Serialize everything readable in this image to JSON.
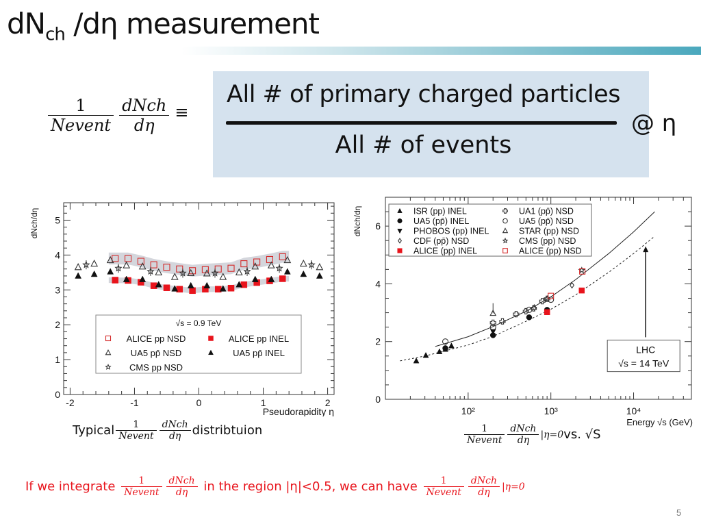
{
  "slide": {
    "title_main": "dN",
    "title_sub": "ch",
    "title_rest": " /dη measurement",
    "page_number": "5",
    "colors": {
      "accent_red": "#e8141c",
      "def_box": "#d5e2ee",
      "title_bar": "#4aa8bd"
    }
  },
  "formula": {
    "one": "1",
    "n_event": "Nevent",
    "dnch": "dNch",
    "deta": "dη",
    "equiv": "≡",
    "numerator": "All # of primary charged particles",
    "denominator": "All # of events",
    "at_eta": "@ η"
  },
  "captions": {
    "left_prefix": "Typical",
    "left_suffix": "distribtuion",
    "right_sub": "|η=0",
    "right_vs": " vs. √S"
  },
  "note": {
    "part1": "If we integrate ",
    "part2": " in the region |η|<0.5, we can have ",
    "part3": "|η=0"
  },
  "chart_data": [
    {
      "type": "scatter",
      "title": "",
      "xlabel": "Pseudorapidity η",
      "ylabel": "dNch/dη",
      "xlim": [
        -2.1,
        2.1
      ],
      "ylim": [
        0,
        5.5
      ],
      "xticks": [
        "-2",
        "-1",
        "0",
        "1",
        "2"
      ],
      "yticks": [
        "0",
        "1",
        "2",
        "3",
        "4",
        "5"
      ],
      "legend_title": "√s = 0.9 TeV",
      "legend_position": "bottom-center",
      "series": [
        {
          "name": "ALICE pp NSD",
          "marker": "open-square",
          "color": "#d42a2a",
          "x": [
            -1.3,
            -1.1,
            -0.9,
            -0.7,
            -0.5,
            -0.3,
            -0.1,
            0.1,
            0.3,
            0.5,
            0.7,
            0.9,
            1.1,
            1.3
          ],
          "y": [
            3.9,
            3.9,
            3.82,
            3.72,
            3.65,
            3.6,
            3.55,
            3.58,
            3.6,
            3.62,
            3.75,
            3.8,
            3.87,
            3.95
          ]
        },
        {
          "name": "ALICE pp INEL",
          "marker": "filled-square",
          "color": "#e8141c",
          "x": [
            -1.3,
            -1.1,
            -0.9,
            -0.7,
            -0.5,
            -0.3,
            -0.1,
            0.1,
            0.3,
            0.5,
            0.7,
            0.9,
            1.1,
            1.3
          ],
          "y": [
            3.28,
            3.27,
            3.22,
            3.12,
            3.06,
            3.02,
            2.98,
            3.02,
            3.02,
            3.05,
            3.15,
            3.21,
            3.26,
            3.32
          ]
        },
        {
          "name": "UA5 pp̄ NSD",
          "marker": "open-triangle",
          "color": "#333333",
          "x": [
            -1.875,
            -1.625,
            -1.375,
            -1.125,
            -0.875,
            -0.625,
            -0.375,
            -0.125,
            0.125,
            0.375,
            0.625,
            0.875,
            1.125,
            1.375,
            1.625,
            1.875
          ],
          "y": [
            3.65,
            3.75,
            3.85,
            3.7,
            3.67,
            3.5,
            3.37,
            3.48,
            3.47,
            3.37,
            3.5,
            3.67,
            3.7,
            3.85,
            3.75,
            3.65
          ]
        },
        {
          "name": "UA5 pp̄ INEL",
          "marker": "filled-triangle",
          "color": "#111111",
          "x": [
            -1.875,
            -1.625,
            -1.375,
            -1.125,
            -0.875,
            -0.625,
            -0.375,
            -0.125,
            0.125,
            0.375,
            0.625,
            0.875,
            1.125,
            1.375,
            1.625,
            1.875
          ],
          "y": [
            3.4,
            3.45,
            3.52,
            3.3,
            3.3,
            3.15,
            3.03,
            3.12,
            3.12,
            3.03,
            3.15,
            3.3,
            3.3,
            3.52,
            3.45,
            3.4
          ]
        },
        {
          "name": "CMS pp NSD",
          "marker": "open-star",
          "color": "#333333",
          "x": [
            -1.75,
            -1.25,
            -0.75,
            -0.25,
            0.25,
            0.75,
            1.25,
            1.75
          ],
          "y": [
            3.72,
            3.62,
            3.53,
            3.48,
            3.48,
            3.53,
            3.62,
            3.72
          ]
        }
      ]
    },
    {
      "type": "scatter",
      "title": "",
      "xlabel": "Energy √s (GeV)",
      "ylabel": "dNch/dη",
      "xscale": "log",
      "xlim": [
        10,
        50000
      ],
      "ylim": [
        0,
        7
      ],
      "xticks": [
        "10²",
        "10³",
        "10⁴"
      ],
      "yticks": [
        "0",
        "2",
        "4",
        "6"
      ],
      "legend_position": "top-left",
      "annotation": {
        "line1": "LHC",
        "line2": "√s = 14 TeV",
        "x": 14000
      },
      "fits": [
        {
          "name": "NSD fit",
          "style": "solid",
          "x": [
            40,
            100,
            200,
            500,
            1000,
            2000,
            5000,
            10000,
            18000
          ],
          "y": [
            1.83,
            2.17,
            2.52,
            3.05,
            3.55,
            4.15,
            5.05,
            5.8,
            6.5
          ]
        },
        {
          "name": "INEL fit",
          "style": "dashed",
          "x": [
            15,
            30,
            60,
            100,
            200,
            500,
            1000,
            2000,
            5000,
            10000,
            18000
          ],
          "y": [
            1.33,
            1.5,
            1.72,
            1.88,
            2.18,
            2.7,
            3.12,
            3.62,
            4.4,
            5.05,
            5.65
          ]
        }
      ],
      "series": [
        {
          "name": "ISR (pp) INEL",
          "marker": "filled-triangle",
          "color": "#111111",
          "x": [
            23.6,
            30.8,
            45,
            53,
            62.8
          ],
          "y": [
            1.33,
            1.52,
            1.65,
            1.73,
            1.85
          ]
        },
        {
          "name": "UA5 (pp̄) INEL",
          "marker": "filled-circle",
          "color": "#111111",
          "x": [
            53,
            200,
            546,
            900
          ],
          "y": [
            1.77,
            2.22,
            2.84,
            3.1
          ]
        },
        {
          "name": "PHOBOS (pp) INEL",
          "marker": "filled-down-triangle",
          "color": "#111111",
          "x": [
            200
          ],
          "y": [
            2.35
          ]
        },
        {
          "name": "CDF (pp̄) NSD",
          "marker": "open-diamond",
          "color": "#333333",
          "x": [
            630,
            1800
          ],
          "y": [
            3.18,
            3.95
          ]
        },
        {
          "name": "ALICE (pp) INEL",
          "marker": "filled-square",
          "color": "#e8141c",
          "x": [
            900,
            2360
          ],
          "y": [
            3.02,
            3.77
          ]
        },
        {
          "name": "UA1 (pp̄) NSD",
          "marker": "open-cross",
          "color": "#333333",
          "x": [
            200,
            260,
            380,
            500,
            620,
            790,
            900
          ],
          "y": [
            2.65,
            2.7,
            2.95,
            3.05,
            3.15,
            3.4,
            3.48
          ]
        },
        {
          "name": "UA5 (pp̄) NSD",
          "marker": "open-circle",
          "color": "#333333",
          "x": [
            53,
            200,
            546,
            1000
          ],
          "y": [
            2.0,
            2.5,
            3.1,
            3.45
          ]
        },
        {
          "name": "STAR (pp) NSD",
          "marker": "open-triangle",
          "color": "#333333",
          "x": [
            200
          ],
          "y": [
            2.98
          ]
        },
        {
          "name": "CMS (pp) NSD",
          "marker": "open-star",
          "color": "#333333",
          "x": [
            900,
            2360
          ],
          "y": [
            3.48,
            4.47
          ]
        },
        {
          "name": "ALICE (pp) NSD",
          "marker": "open-square",
          "color": "#d42a2a",
          "x": [
            1000,
            2400
          ],
          "y": [
            3.58,
            4.43
          ]
        }
      ]
    }
  ]
}
